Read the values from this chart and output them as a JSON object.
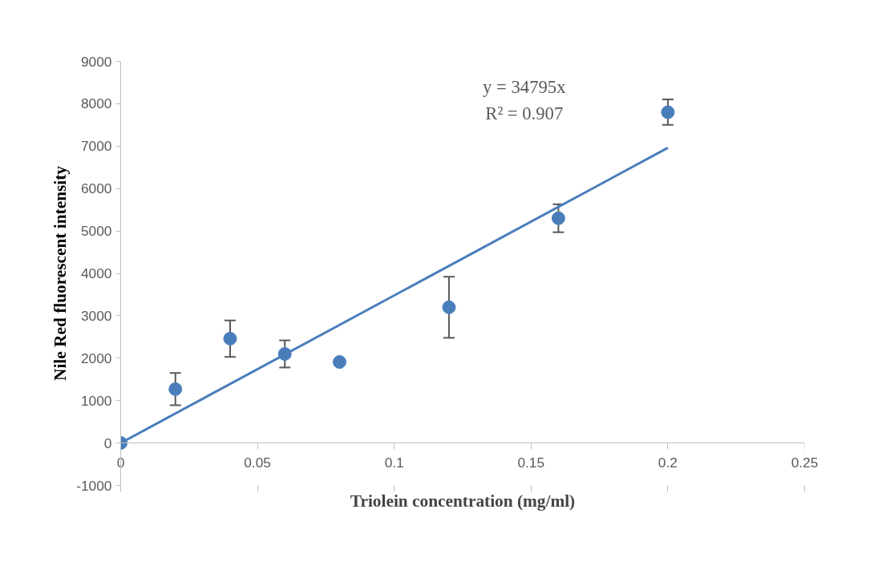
{
  "chart_data": {
    "type": "scatter",
    "xlabel": "Triolein concentration (mg/ml)",
    "ylabel": "Nile Red fluorescent intensity",
    "annotations": [
      "y = 34795x",
      "R² = 0.907"
    ],
    "xlim": [
      0,
      0.25
    ],
    "xticks": [
      0,
      0.05,
      0.1,
      0.15,
      0.2,
      0.25
    ],
    "ylim": [
      -1000,
      9000
    ],
    "yticks": [
      -1000,
      0,
      1000,
      2000,
      3000,
      4000,
      5000,
      6000,
      7000,
      8000,
      9000
    ],
    "grid": false,
    "marker": "circle",
    "series": [
      {
        "type": "line",
        "color": "#4a7ebb",
        "x": [
          0,
          0.2
        ],
        "values": [
          0,
          6960
        ],
        "marker": "none",
        "line_style": "solid"
      },
      {
        "color": "#4a7ebb",
        "x": [
          0,
          0.02,
          0.04,
          0.06,
          0.08,
          0.12,
          0.16,
          0.2
        ],
        "values": [
          0,
          1270,
          2460,
          2100,
          1910,
          3200,
          5300,
          7800
        ],
        "errors": [
          null,
          380,
          430,
          320,
          null,
          720,
          330,
          300
        ]
      }
    ]
  }
}
